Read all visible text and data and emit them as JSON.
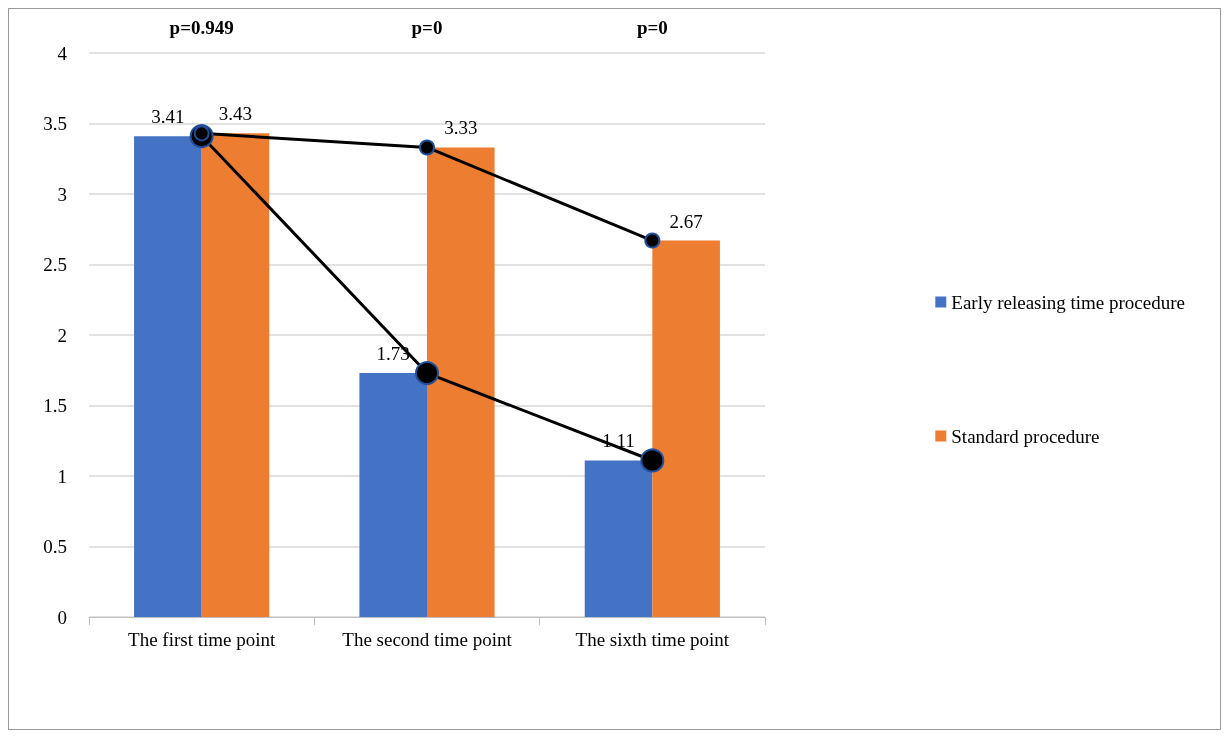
{
  "chart_data": {
    "type": "bar",
    "categories": [
      "The first time point",
      "The second time point",
      "The sixth time point"
    ],
    "series": [
      {
        "name": "Early releasing time procedure",
        "color": "#4472c4",
        "values": [
          3.41,
          1.73,
          1.11
        ],
        "value_labels": [
          "3.41",
          "1.73",
          "1.11"
        ]
      },
      {
        "name": "Standard procedure",
        "color": "#ed7d31",
        "values": [
          3.43,
          3.33,
          2.67
        ],
        "value_labels": [
          "3.43",
          "3.33",
          "2.67"
        ]
      },
      {
        "type": "line",
        "color": "#000000",
        "values": [
          3.41,
          1.73,
          1.11
        ]
      },
      {
        "type": "line",
        "color": "#000000",
        "values": [
          3.43,
          3.33,
          2.67
        ]
      }
    ],
    "annotations": [
      "p=0.949",
      "p=0",
      "p=0"
    ],
    "ylim": [
      0,
      4
    ],
    "yticks": [
      0,
      0.5,
      1,
      1.5,
      2,
      2.5,
      3,
      3.5,
      4
    ],
    "grid": "y",
    "legend": "right",
    "marker": "circle",
    "line_style": "solid"
  }
}
